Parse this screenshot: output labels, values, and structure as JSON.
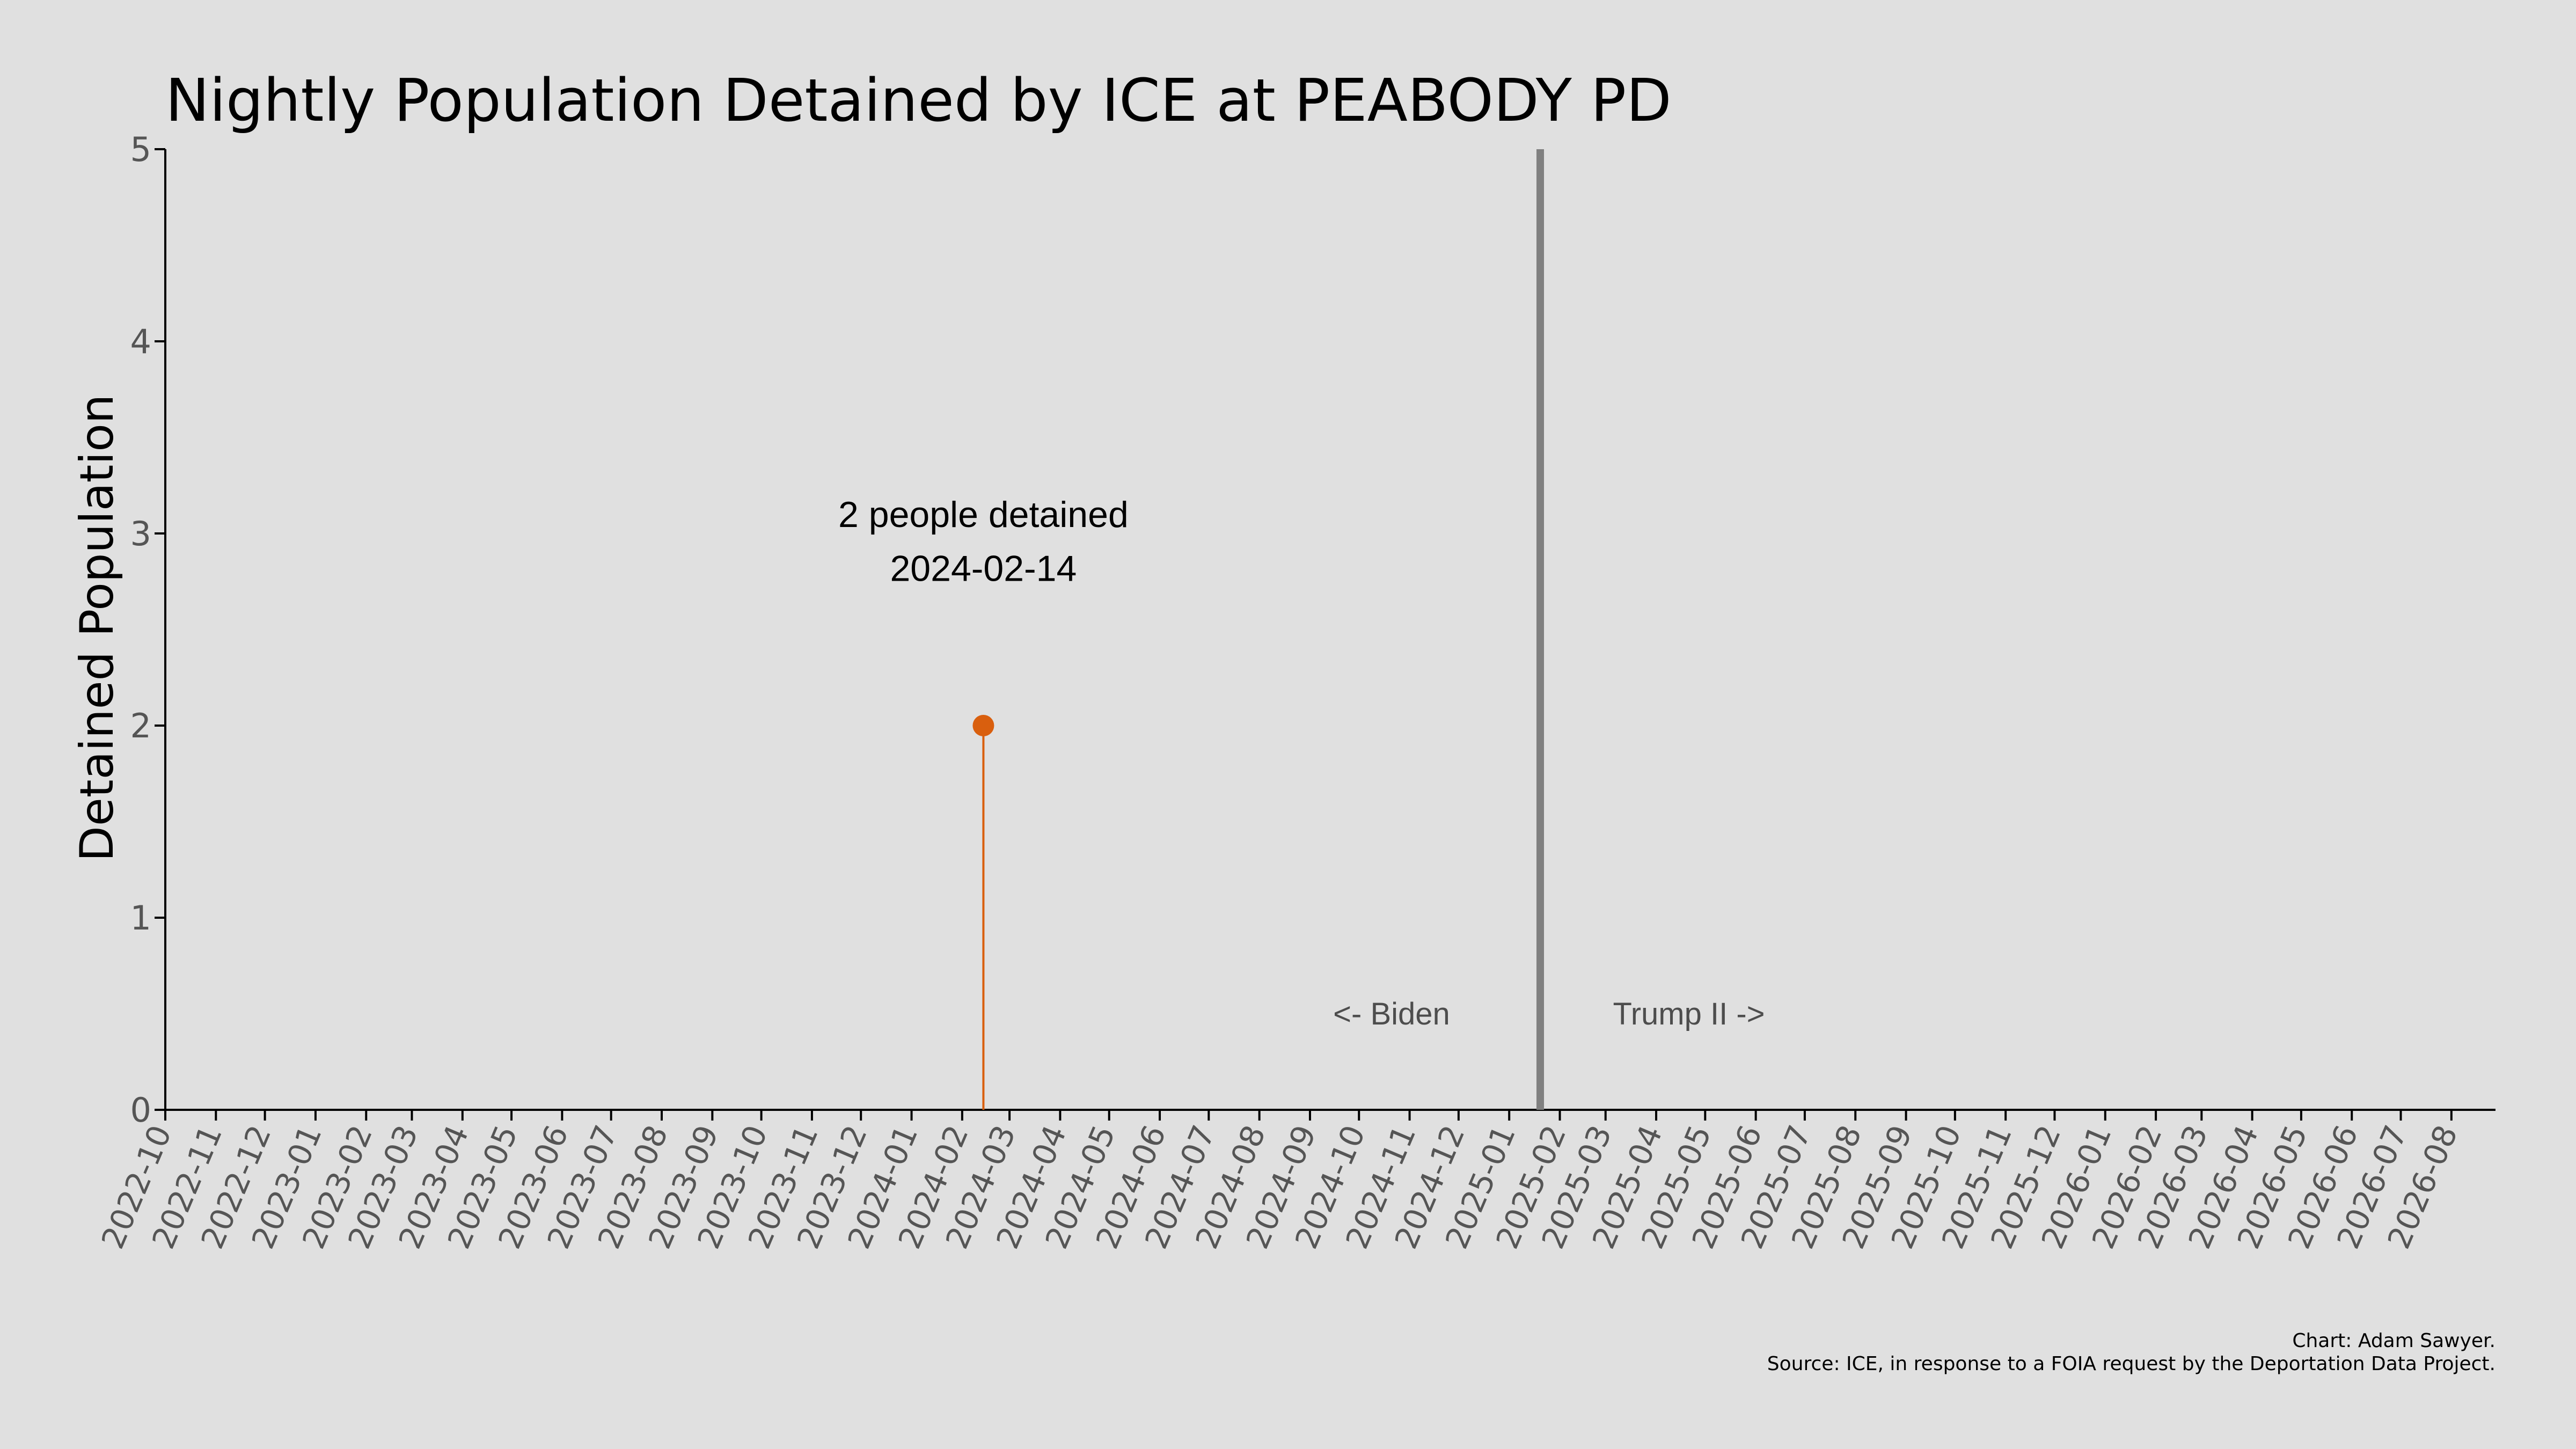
{
  "chart_data": {
    "type": "line",
    "title": "Nightly Population Detained by ICE at PEABODY PD",
    "xlabel": "",
    "ylabel": "Detained Population",
    "ylim": [
      0,
      5
    ],
    "yticks": [
      "0",
      "1",
      "2",
      "3",
      "4",
      "5"
    ],
    "xlim": [
      "2022-10-01",
      "2026-08-28"
    ],
    "xticks": [
      "2022-10",
      "2022-11",
      "2022-12",
      "2023-01",
      "2023-02",
      "2023-03",
      "2023-04",
      "2023-05",
      "2023-06",
      "2023-07",
      "2023-08",
      "2023-09",
      "2023-10",
      "2023-11",
      "2023-12",
      "2024-01",
      "2024-02",
      "2024-03",
      "2024-04",
      "2024-05",
      "2024-06",
      "2024-07",
      "2024-08",
      "2024-09",
      "2024-10",
      "2024-11",
      "2024-12",
      "2025-01",
      "2025-02",
      "2025-03",
      "2025-04",
      "2025-05",
      "2025-06",
      "2025-07",
      "2025-08",
      "2025-09",
      "2025-10",
      "2025-11",
      "2025-12",
      "2026-01",
      "2026-02",
      "2026-03",
      "2026-04",
      "2026-05",
      "2026-06",
      "2026-07",
      "2026-08"
    ],
    "grid": false,
    "series": [
      {
        "points": [
          {
            "x": "2024-02-14",
            "y": 2
          }
        ],
        "color": "#d95f0e"
      }
    ],
    "annotations": {
      "peak_line1": "2 people detained",
      "peak_line2": "2024-02-14",
      "left_era": "<- Biden",
      "right_era": "Trump II ->"
    },
    "divider": {
      "x": "2025-01-20",
      "color": "#808080"
    }
  },
  "caption": {
    "line1": "Chart: Adam Sawyer.",
    "line2": "Source: ICE, in response to a FOIA request by the Deportation Data Project."
  },
  "colors": {
    "background": "#e0e0e0",
    "accent": "#d95f0e",
    "axis": "#000000",
    "divider": "#808080"
  }
}
